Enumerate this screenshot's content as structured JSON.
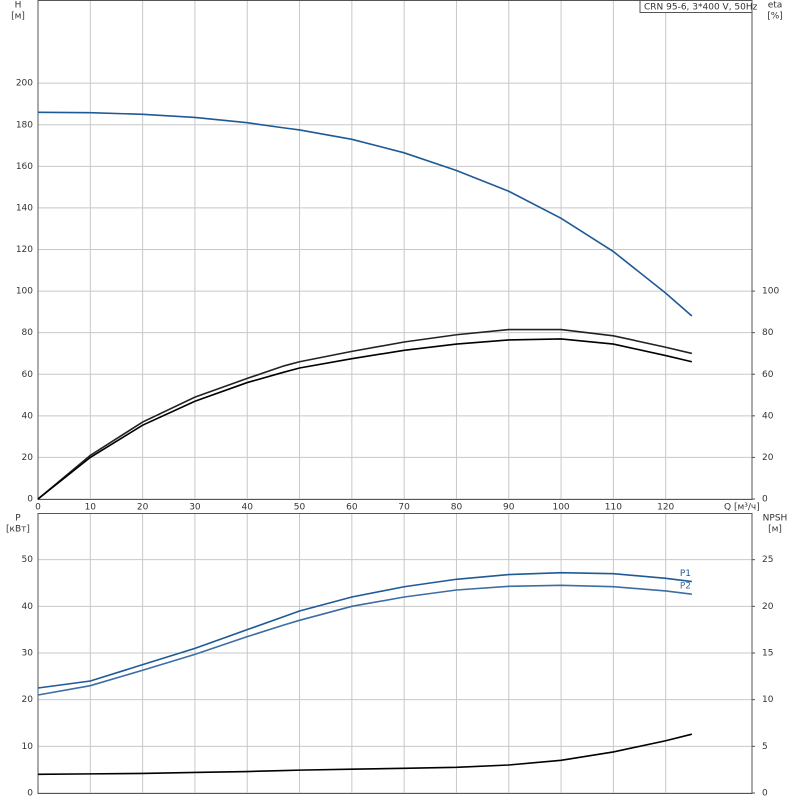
{
  "chart_data": [
    {
      "type": "line",
      "title": "CRN 95-6, 3*400 V, 50Hz",
      "ylabel": "H",
      "ylabel_unit": "[м]",
      "y2label": "eta",
      "y2label_unit": "[%]",
      "xlabel": "Q [м³/ч]",
      "x": [
        0,
        10,
        20,
        30,
        40,
        47,
        50,
        60,
        70,
        80,
        90,
        100,
        110,
        120,
        125
      ],
      "xlim": [
        0,
        136.5
      ],
      "xticks": [
        0,
        10,
        20,
        30,
        40,
        50,
        60,
        70,
        80,
        90,
        100,
        110,
        120
      ],
      "ylim": [
        0,
        240
      ],
      "yticks": [
        0,
        20,
        40,
        60,
        80,
        100,
        120,
        140,
        160,
        180,
        200
      ],
      "y2lim": [
        0,
        240
      ],
      "y2ticks": [
        0,
        20,
        40,
        60,
        80,
        100
      ],
      "grid": true,
      "series": [
        {
          "color": "#1f5a96",
          "values": [
            186,
            185.8,
            185,
            183.5,
            181,
            178.5,
            177.5,
            173,
            166.5,
            158,
            148,
            135,
            119,
            99,
            88
          ]
        },
        {
          "color": "#222222",
          "axis": "y2",
          "values": [
            0,
            21,
            37,
            49,
            58,
            64,
            66,
            71,
            75.5,
            79,
            81.5,
            81.5,
            78.5,
            73,
            70
          ]
        },
        {
          "color": "#000000",
          "axis": "y2",
          "values": [
            0,
            20,
            35.5,
            47,
            56,
            61,
            63,
            67.5,
            71.5,
            74.5,
            76.5,
            77,
            74.5,
            69,
            66
          ]
        }
      ]
    },
    {
      "type": "line",
      "ylabel": "P",
      "ylabel_unit": "[кВт]",
      "y2label": "NPSH",
      "y2label_unit": "[м]",
      "x": [
        0,
        10,
        20,
        30,
        40,
        47,
        50,
        60,
        70,
        80,
        90,
        100,
        110,
        120,
        125
      ],
      "xlim": [
        0,
        136.5
      ],
      "ylim": [
        0,
        60
      ],
      "yticks": [
        0,
        10,
        20,
        30,
        40,
        50
      ],
      "y2lim": [
        0,
        30
      ],
      "y2ticks": [
        0,
        5,
        10,
        15,
        20,
        25
      ],
      "grid": true,
      "series": [
        {
          "name": "P1",
          "color": "#1f5a96",
          "values": [
            22.5,
            24,
            27.5,
            31,
            35,
            37.8,
            39,
            42,
            44.2,
            45.8,
            46.8,
            47.2,
            47,
            46,
            45.3
          ]
        },
        {
          "name": "P2",
          "color": "#3c6ea5",
          "values": [
            21,
            23,
            26.3,
            29.7,
            33.5,
            36,
            37,
            40,
            42,
            43.5,
            44.3,
            44.5,
            44.2,
            43.3,
            42.6
          ]
        },
        {
          "color": "#000000",
          "axis": "y2",
          "values": [
            2,
            2.05,
            2.1,
            2.2,
            2.3,
            2.4,
            2.45,
            2.55,
            2.65,
            2.75,
            3,
            3.5,
            4.4,
            5.6,
            6.3
          ]
        }
      ]
    }
  ]
}
